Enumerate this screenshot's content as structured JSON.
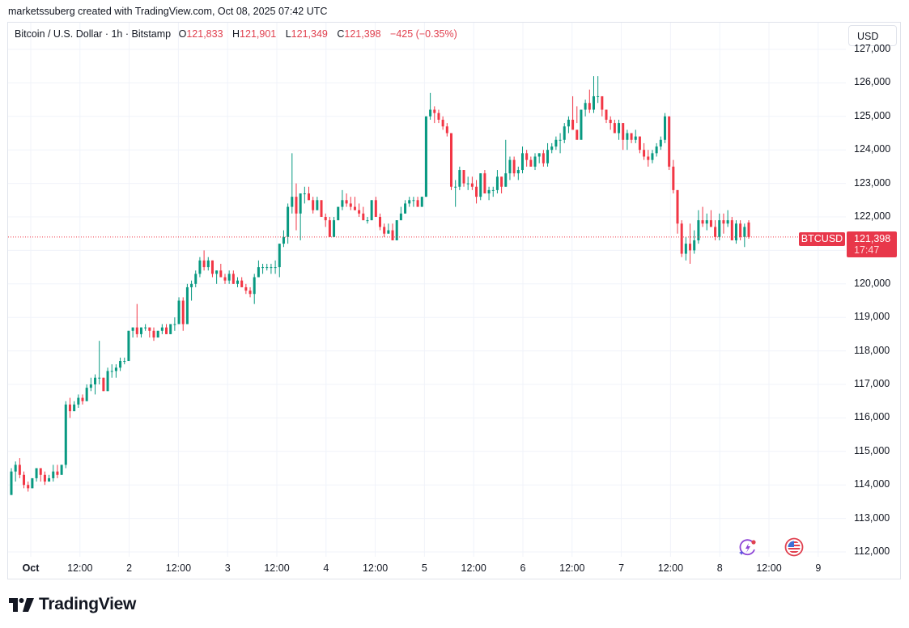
{
  "credit": "marketssuberg created with TradingView.com, Oct 08, 2025 07:42 UTC",
  "legend": {
    "symbol": "Bitcoin / U.S. Dollar · 1h · Bitstamp",
    "o_label": "O",
    "o_value": "121,833",
    "h_label": "H",
    "h_value": "121,901",
    "l_label": "L",
    "l_value": "121,349",
    "c_label": "C",
    "c_value": "121,398",
    "change": "−425 (−0.35%)"
  },
  "currency_button": "USD",
  "price_marker": {
    "symbol": "BTCUSD",
    "price": "121,398",
    "countdown": "17:47"
  },
  "colors": {
    "up": "#089981",
    "down": "#f23645",
    "tag": "#e8374a",
    "grid": "#f0f3fa",
    "text": "#131722"
  },
  "y_axis": {
    "ticks": [
      "127,000",
      "126,000",
      "125,000",
      "124,000",
      "123,000",
      "122,000",
      "120,000",
      "119,000",
      "118,000",
      "117,000",
      "116,000",
      "115,000",
      "114,000",
      "113,000",
      "112,000"
    ]
  },
  "x_axis": {
    "ticks": [
      "Oct",
      "12:00",
      "2",
      "12:00",
      "3",
      "12:00",
      "4",
      "12:00",
      "5",
      "12:00",
      "6",
      "12:00",
      "7",
      "12:00",
      "8",
      "12:00",
      "9"
    ]
  },
  "events": [
    {
      "name": "lightning-event"
    },
    {
      "name": "us-flag-event"
    }
  ],
  "brand": "TradingView",
  "chart_data": {
    "type": "candlestick",
    "title": "Bitcoin / U.S. Dollar · 1h · Bitstamp",
    "interval": "1h",
    "xlabel": "",
    "ylabel": "USD",
    "ylim": [
      111800,
      127100
    ],
    "x_range": [
      "2025-09-30 19:00",
      "2025-10-08 07:00"
    ],
    "last": {
      "open": 121833,
      "high": 121901,
      "low": 121349,
      "close": 121398,
      "change": -425,
      "change_pct": -0.35
    },
    "candles": [
      [
        113700,
        114500,
        113700,
        114400
      ],
      [
        114400,
        114700,
        114100,
        114600
      ],
      [
        114600,
        114800,
        114200,
        114300
      ],
      [
        114300,
        114400,
        113900,
        114000
      ],
      [
        114000,
        114100,
        113800,
        113900
      ],
      [
        113900,
        114200,
        113900,
        114200
      ],
      [
        114200,
        114500,
        114100,
        114500
      ],
      [
        114500,
        114500,
        114100,
        114300
      ],
      [
        114300,
        114400,
        114000,
        114100
      ],
      [
        114100,
        114300,
        114100,
        114200
      ],
      [
        114200,
        114600,
        114100,
        114400
      ],
      [
        114400,
        114600,
        114200,
        114300
      ],
      [
        114300,
        114600,
        114300,
        114600
      ],
      [
        114600,
        116500,
        114500,
        116400
      ],
      [
        116400,
        116600,
        116000,
        116200
      ],
      [
        116200,
        116500,
        116200,
        116400
      ],
      [
        116400,
        116700,
        116300,
        116600
      ],
      [
        116600,
        116700,
        116400,
        116500
      ],
      [
        116500,
        117000,
        116500,
        116900
      ],
      [
        116900,
        117200,
        116800,
        117000
      ],
      [
        117000,
        117300,
        116700,
        117200
      ],
      [
        117200,
        118300,
        117000,
        117200
      ],
      [
        117200,
        117200,
        116800,
        116800
      ],
      [
        116800,
        117500,
        116800,
        117400
      ],
      [
        117400,
        117600,
        117200,
        117400
      ],
      [
        117400,
        117600,
        117200,
        117500
      ],
      [
        117500,
        117800,
        117400,
        117700
      ],
      [
        117700,
        117800,
        117600,
        117700
      ],
      [
        117700,
        118600,
        117700,
        118600
      ],
      [
        118600,
        118700,
        118400,
        118700
      ],
      [
        118700,
        119400,
        118400,
        118500
      ],
      [
        118500,
        118700,
        118400,
        118700
      ],
      [
        118700,
        118800,
        118600,
        118700
      ],
      [
        118700,
        118700,
        118400,
        118600
      ],
      [
        118600,
        118700,
        118300,
        118400
      ],
      [
        118400,
        118600,
        118400,
        118600
      ],
      [
        118600,
        118800,
        118500,
        118700
      ],
      [
        118700,
        118800,
        118500,
        118500
      ],
      [
        118500,
        118800,
        118500,
        118800
      ],
      [
        118800,
        119000,
        118600,
        118800
      ],
      [
        118800,
        119600,
        118800,
        119500
      ],
      [
        119500,
        119600,
        118600,
        118800
      ],
      [
        118800,
        120000,
        118800,
        119900
      ],
      [
        119900,
        120100,
        119500,
        120000
      ],
      [
        120000,
        120400,
        119900,
        120300
      ],
      [
        120300,
        120800,
        120200,
        120700
      ],
      [
        120700,
        121000,
        120400,
        120500
      ],
      [
        120500,
        120800,
        120400,
        120700
      ],
      [
        120700,
        120700,
        120200,
        120300
      ],
      [
        120300,
        120400,
        120000,
        120400
      ],
      [
        120400,
        120600,
        120200,
        120200
      ],
      [
        120200,
        120300,
        120000,
        120100
      ],
      [
        120100,
        120400,
        120000,
        120300
      ],
      [
        120300,
        120400,
        120000,
        120000
      ],
      [
        120000,
        120200,
        119900,
        120100
      ],
      [
        120100,
        120200,
        119900,
        119900
      ],
      [
        119900,
        120000,
        119700,
        119800
      ],
      [
        119800,
        119900,
        119600,
        119700
      ],
      [
        119700,
        120300,
        119400,
        120200
      ],
      [
        120200,
        120700,
        120200,
        120500
      ],
      [
        120500,
        120600,
        120300,
        120500
      ],
      [
        120500,
        120600,
        120400,
        120500
      ],
      [
        120500,
        120600,
        120300,
        120500
      ],
      [
        120500,
        120700,
        120300,
        120500
      ],
      [
        120500,
        121200,
        120200,
        121200
      ],
      [
        121200,
        121600,
        121100,
        121400
      ],
      [
        121400,
        122400,
        121200,
        122300
      ],
      [
        122300,
        123900,
        122100,
        122600
      ],
      [
        122600,
        123000,
        121600,
        122100
      ],
      [
        122100,
        122700,
        121300,
        122700
      ],
      [
        122700,
        122900,
        122400,
        122700
      ],
      [
        122700,
        122900,
        122500,
        122500
      ],
      [
        122500,
        122600,
        122100,
        122200
      ],
      [
        122200,
        122600,
        122200,
        122500
      ],
      [
        122500,
        122500,
        122000,
        122000
      ],
      [
        122000,
        122100,
        121700,
        121900
      ],
      [
        121900,
        122000,
        121500,
        121400
      ],
      [
        121400,
        122000,
        121500,
        121900
      ],
      [
        121900,
        122200,
        121900,
        122300
      ],
      [
        122300,
        122800,
        122200,
        122500
      ],
      [
        122500,
        122700,
        122300,
        122400
      ],
      [
        122400,
        122600,
        122200,
        122300
      ],
      [
        122300,
        122600,
        122200,
        122200
      ],
      [
        122200,
        122400,
        122000,
        122100
      ],
      [
        122100,
        122300,
        121900,
        121900
      ],
      [
        121900,
        122000,
        121800,
        121900
      ],
      [
        121900,
        122500,
        121900,
        122500
      ],
      [
        122500,
        122600,
        122000,
        122000
      ],
      [
        122000,
        122100,
        121600,
        121700
      ],
      [
        121700,
        121800,
        121400,
        121500
      ],
      [
        121500,
        121800,
        121500,
        121600
      ],
      [
        121600,
        121800,
        121400,
        121300
      ],
      [
        121300,
        121900,
        121300,
        121900
      ],
      [
        121900,
        122300,
        121900,
        122100
      ],
      [
        122100,
        122500,
        122100,
        122400
      ],
      [
        122400,
        122600,
        122300,
        122500
      ],
      [
        122500,
        122600,
        122300,
        122500
      ],
      [
        122500,
        122600,
        122300,
        122300
      ],
      [
        122300,
        122600,
        122300,
        122600
      ],
      [
        122600,
        125000,
        122600,
        125000
      ],
      [
        125000,
        125700,
        124900,
        125200
      ],
      [
        125200,
        125300,
        124800,
        125100
      ],
      [
        125100,
        125200,
        124800,
        124900
      ],
      [
        124900,
        125000,
        124600,
        124700
      ],
      [
        124700,
        124800,
        124400,
        124500
      ],
      [
        124500,
        124500,
        122800,
        122900
      ],
      [
        122900,
        123100,
        122300,
        122900
      ],
      [
        122900,
        123500,
        122800,
        123400
      ],
      [
        123400,
        123400,
        122900,
        123000
      ],
      [
        123000,
        123200,
        122800,
        123000
      ],
      [
        123000,
        123200,
        122800,
        122900
      ],
      [
        122900,
        123100,
        122400,
        122600
      ],
      [
        122600,
        123300,
        122500,
        123300
      ],
      [
        123300,
        123400,
        122700,
        122700
      ],
      [
        122700,
        122900,
        122500,
        122800
      ],
      [
        122800,
        122900,
        122600,
        122800
      ],
      [
        122800,
        123400,
        122700,
        123200
      ],
      [
        123200,
        123200,
        122700,
        122900
      ],
      [
        122900,
        124300,
        122900,
        123300
      ],
      [
        123300,
        123800,
        123100,
        123700
      ],
      [
        123700,
        123800,
        123200,
        123300
      ],
      [
        123300,
        123500,
        123100,
        123400
      ],
      [
        123400,
        124100,
        123300,
        123900
      ],
      [
        123900,
        124000,
        123500,
        123700
      ],
      [
        123700,
        123800,
        123500,
        123500
      ],
      [
        123500,
        123900,
        123400,
        123800
      ],
      [
        123800,
        123900,
        123600,
        123900
      ],
      [
        123900,
        124000,
        123500,
        123600
      ],
      [
        123600,
        124200,
        123500,
        124000
      ],
      [
        124000,
        124200,
        123900,
        124100
      ],
      [
        124100,
        124400,
        124000,
        124300
      ],
      [
        124300,
        124500,
        123900,
        124300
      ],
      [
        124300,
        124800,
        124200,
        124700
      ],
      [
        124700,
        125000,
        124500,
        124900
      ],
      [
        124900,
        125600,
        124700,
        124600
      ],
      [
        124600,
        125300,
        124800,
        124300
      ],
      [
        124300,
        125100,
        124600,
        125200
      ],
      [
        125200,
        125500,
        125000,
        125400
      ],
      [
        125400,
        125800,
        125100,
        125200
      ],
      [
        125200,
        126200,
        125100,
        125600
      ],
      [
        125600,
        126200,
        125400,
        125600
      ],
      [
        125600,
        125600,
        125000,
        125200
      ],
      [
        125200,
        125200,
        124800,
        124900
      ],
      [
        124900,
        125000,
        124600,
        124800
      ],
      [
        124800,
        124900,
        124500,
        124500
      ],
      [
        124500,
        124900,
        124300,
        124800
      ],
      [
        124800,
        124800,
        124000,
        124300
      ],
      [
        124300,
        124600,
        124000,
        124500
      ],
      [
        124500,
        124500,
        124200,
        124300
      ],
      [
        124300,
        124600,
        124200,
        124400
      ],
      [
        124400,
        124400,
        123900,
        124000
      ],
      [
        124000,
        124200,
        123700,
        123800
      ],
      [
        123800,
        124000,
        123500,
        123700
      ],
      [
        123700,
        124000,
        123600,
        123900
      ],
      [
        123900,
        124200,
        123800,
        124100
      ],
      [
        124100,
        124400,
        124000,
        124300
      ],
      [
        124300,
        125100,
        124200,
        125000
      ],
      [
        125000,
        125000,
        123400,
        123500
      ],
      [
        123500,
        123700,
        122700,
        122800
      ],
      [
        122800,
        122800,
        121500,
        121800
      ],
      [
        121800,
        121900,
        120800,
        120900
      ],
      [
        120900,
        121400,
        120700,
        121200
      ],
      [
        121200,
        121800,
        120600,
        121000
      ],
      [
        121000,
        121600,
        120900,
        121300
      ],
      [
        121300,
        122200,
        121200,
        121900
      ],
      [
        121900,
        122300,
        121700,
        121800
      ],
      [
        121800,
        122100,
        121600,
        121900
      ],
      [
        121900,
        122200,
        121800,
        121700
      ],
      [
        121700,
        121900,
        121300,
        121400
      ],
      [
        121400,
        122100,
        121300,
        121900
      ],
      [
        121900,
        122100,
        121500,
        121800
      ],
      [
        121800,
        122200,
        121700,
        121900
      ],
      [
        121900,
        122000,
        121500,
        121300
      ],
      [
        121300,
        121900,
        121200,
        121800
      ],
      [
        121800,
        121900,
        121300,
        121400
      ],
      [
        121400,
        121800,
        121100,
        121700
      ],
      [
        121833,
        121901,
        121349,
        121398
      ]
    ]
  }
}
